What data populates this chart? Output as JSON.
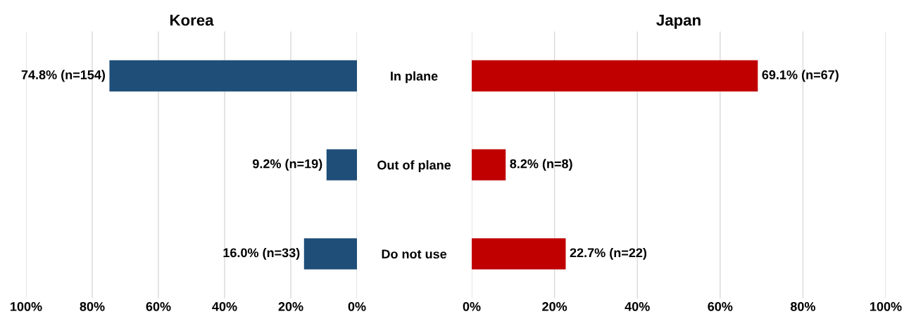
{
  "chart_data": [
    {
      "type": "bar",
      "title": "Korea",
      "orientation": "horizontal",
      "categories": [
        null,
        null,
        null
      ],
      "series": [
        {
          "color": "#1f4e79",
          "values": [
            74.8,
            9.2,
            16.0
          ],
          "value_labels": [
            "74.8% (n=154)",
            "9.2% (n=19)",
            "16.0% (n=33)"
          ]
        }
      ],
      "xlim": [
        100,
        0
      ],
      "xticks": [
        {
          "value": 100,
          "label": "100%"
        },
        {
          "value": 80,
          "label": "80%"
        },
        {
          "value": 60,
          "label": "60%"
        },
        {
          "value": 40,
          "label": "40%"
        },
        {
          "value": 20,
          "label": "20%"
        },
        {
          "value": 0,
          "label": "0%"
        }
      ],
      "grid": "x",
      "tick_labels": "x"
    },
    {
      "type": "bar",
      "title": "Japan",
      "orientation": "horizontal",
      "categories": [
        "In plane",
        "Out of plane",
        "Do not use"
      ],
      "series": [
        {
          "color": "#c00000",
          "values": [
            69.1,
            8.2,
            22.7
          ],
          "value_labels": [
            "69.1% (n=67)",
            "8.2% (n=8)",
            "22.7% (n=22)"
          ]
        }
      ],
      "xlim": [
        0,
        100
      ],
      "xticks": [
        {
          "value": 0,
          "label": "0%"
        },
        {
          "value": 20,
          "label": "20%"
        },
        {
          "value": 40,
          "label": "40%"
        },
        {
          "value": 60,
          "label": "60%"
        },
        {
          "value": 80,
          "label": "80%"
        },
        {
          "value": 100,
          "label": "100%"
        }
      ],
      "grid": "x"
    }
  ]
}
